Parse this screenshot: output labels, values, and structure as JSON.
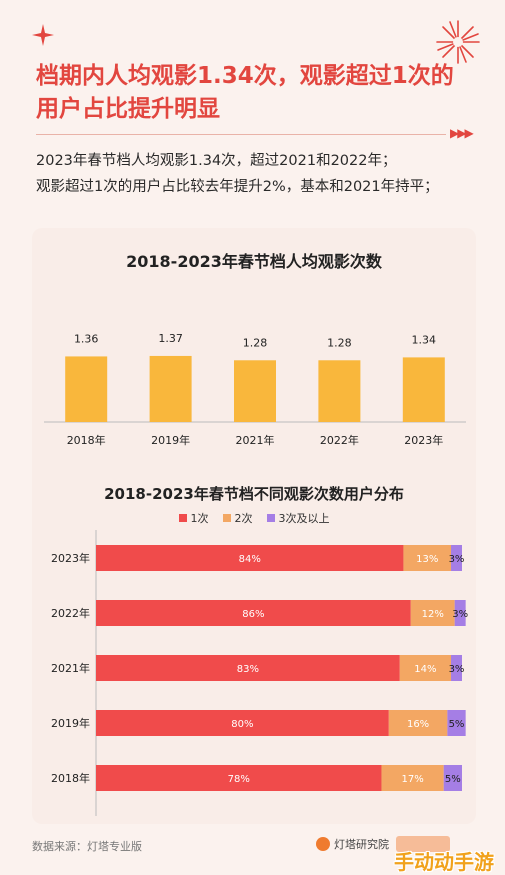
{
  "header": {
    "title": "档期内人均观影1.34次，观影超过1次的用户占比提升明显"
  },
  "description": [
    "2023年春节档人均观影1.34次，超过2021和2022年；",
    "观影超过1次的用户占比较去年提升2%，基本和2021年持平；"
  ],
  "colors": {
    "title_red": "#e2463f",
    "bar_orange": "#f9b73c",
    "seg_1": "#f04b4b",
    "seg_2": "#f3a763",
    "seg_3": "#a57ee5"
  },
  "chart_data": [
    {
      "type": "bar",
      "title": "2018-2023年春节档人均观影次数",
      "categories": [
        "2018年",
        "2019年",
        "2021年",
        "2022年",
        "2023年"
      ],
      "values": [
        1.36,
        1.37,
        1.28,
        1.28,
        1.34
      ],
      "value_labels": [
        "1.36",
        "1.37",
        "1.28",
        "1.28",
        "1.34"
      ],
      "ylim": [
        0,
        1.5
      ],
      "grid": false
    },
    {
      "type": "bar",
      "orientation": "horizontal-stacked",
      "title": "2018-2023年春节档不同观影次数用户分布",
      "categories": [
        "2023年",
        "2022年",
        "2021年",
        "2019年",
        "2018年"
      ],
      "series": [
        {
          "name": "1次",
          "values": [
            84,
            86,
            83,
            80,
            78
          ],
          "labels": [
            "84%",
            "86%",
            "83%",
            "80%",
            "78%"
          ]
        },
        {
          "name": "2次",
          "values": [
            13,
            12,
            14,
            16,
            17
          ],
          "labels": [
            "13%",
            "12%",
            "14%",
            "16%",
            "17%"
          ]
        },
        {
          "name": "3次及以上",
          "values": [
            3,
            3,
            3,
            5,
            5
          ],
          "labels": [
            "3%",
            "3%",
            "3%",
            "5%",
            "5%"
          ]
        }
      ],
      "legend": "top-center"
    }
  ],
  "footer": {
    "source": "数据来源：灯塔专业版",
    "logo": "灯塔研究院",
    "watermark": "手动动手游"
  }
}
